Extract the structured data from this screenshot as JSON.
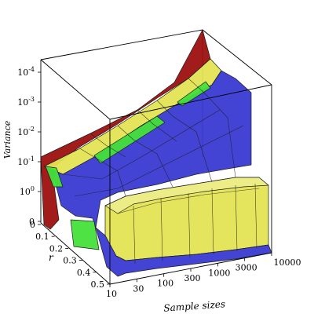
{
  "chart_data": {
    "type": "surface3d",
    "title": "",
    "xlabel": "Sample sizes",
    "ylabel": "r",
    "zlabel": "Variance",
    "x_ticks": [
      "10",
      "30",
      "100",
      "300",
      "1000",
      "3000",
      "10000"
    ],
    "y_ticks": [
      "0",
      "0.1",
      "0.2",
      "0.3",
      "0.4",
      "0.5"
    ],
    "z_ticks": [
      {
        "base": "10",
        "exp": "-4"
      },
      {
        "base": "10",
        "exp": "-3"
      },
      {
        "base": "10",
        "exp": "-2"
      },
      {
        "base": "10",
        "exp": "-1"
      },
      {
        "base": "10",
        "exp": "0"
      },
      {
        "base": "0",
        "exp": ""
      }
    ],
    "surfaces": [
      {
        "color": "#9e1010"
      },
      {
        "color": "#3a3ad2"
      },
      {
        "color": "#e4e454"
      },
      {
        "color": "#45e03a"
      }
    ]
  }
}
